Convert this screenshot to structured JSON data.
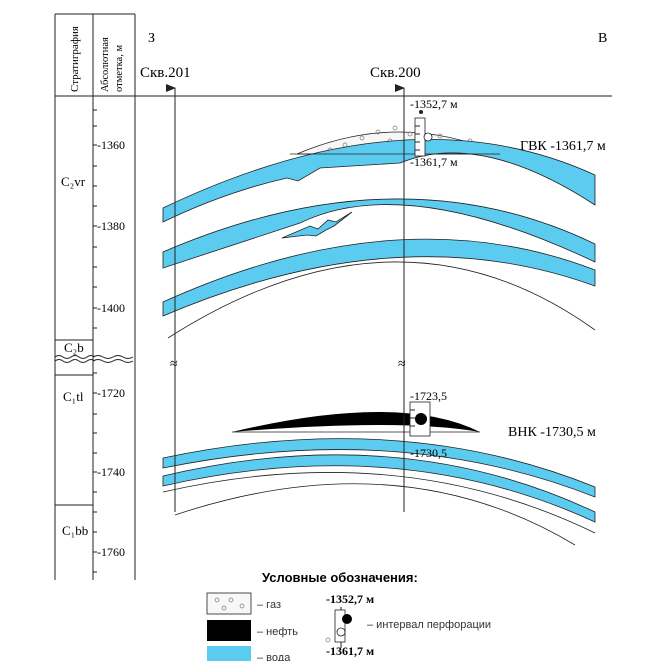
{
  "header": {
    "col_strat": "Стратиграфия",
    "col_abs_line1": "Абсолютная",
    "col_abs_line2": "отметка, м",
    "west": "З",
    "east": "В"
  },
  "wells": {
    "w201": "Скв.201",
    "w200": "Скв.200"
  },
  "strat_units": [
    "C₂vr",
    "C₂b",
    "C₁tl",
    "C₁bb"
  ],
  "depth_ticks_upper": [
    "-1360",
    "-1380",
    "-1400"
  ],
  "depth_ticks_lower": [
    "-1720",
    "-1740",
    "-1760"
  ],
  "break_symbol": "≈",
  "annotations": {
    "gas_top": "-1352,7 м",
    "gwc_mark": "-1361,7 м",
    "gwc": "ГВК -1361,7 м",
    "oil_top": "-1723,5",
    "owc_mark": "-1730,5",
    "owc": "ВНК -1730,5 м"
  },
  "legend": {
    "title": "Условные обозначения:",
    "gas": "– газ",
    "oil": "– нефть",
    "water": "– вода",
    "perf_top": "-1352,7 м",
    "perf_bottom": "-1361,7 м",
    "perf_label": "– интервал перфорации"
  },
  "colors": {
    "water": "#5ccbf0",
    "oil": "#000000",
    "gas": "#f7f7f7",
    "line": "#222222"
  }
}
